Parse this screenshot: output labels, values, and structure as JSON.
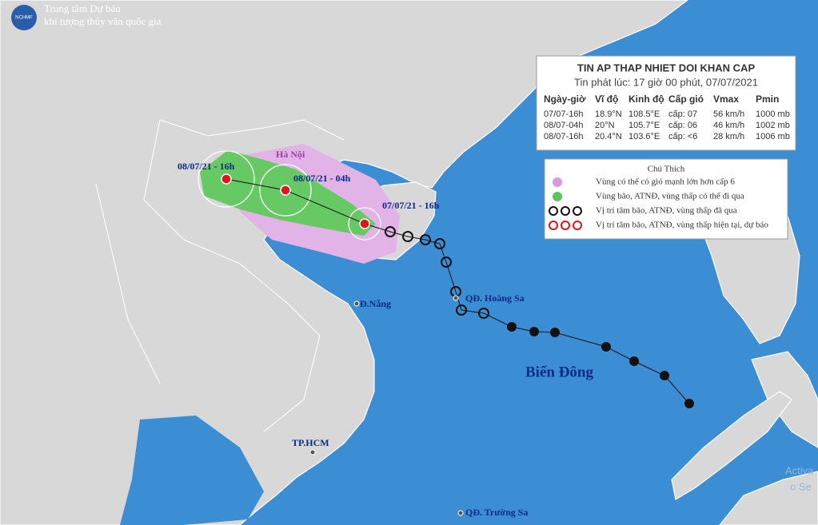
{
  "header": {
    "org_line1": "Trung tâm Dự báo",
    "org_line2": "khí tượng thủy văn quốc gia",
    "logo_text": "NCHMF"
  },
  "bulletin": {
    "title": "TIN AP THAP NHIET DOI KHAN CAP",
    "issued": "Tin phát lúc: 17 giờ 00 phút, 07/07/2021",
    "columns": [
      "Ngày-giờ",
      "Vĩ độ",
      "Kinh độ",
      "Cấp gió",
      "Vmax",
      "Pmin"
    ],
    "rows": [
      [
        "07/07-16h",
        "18.9°N",
        "108.5°E",
        "cấp: 07",
        "56 km/h",
        "1000 mb"
      ],
      [
        "08/07-04h",
        "20°N",
        "105.7°E",
        "cấp: 06",
        "46 km/h",
        "1002 mb"
      ],
      [
        "08/07-16h",
        "20.4°N",
        "103.6°E",
        "cấp: <6",
        "28 km/h",
        "1006 mb"
      ]
    ]
  },
  "legend": {
    "title": "Chú Thích",
    "items": [
      "Vùng có thể có gió mạnh lớn hơn cấp 6",
      "Vùng bão, ATNĐ, vùng thấp có thể đi qua",
      "Vị trí tâm bão, ATNĐ, vùng thấp đã qua",
      "Vị trí tâm bão, ATNĐ, vùng thấp hiện tại, dự báo"
    ]
  },
  "forecast_labels": [
    "08/07/21 - 16h",
    "08/07/21 - 04h",
    "07/07/21 - 16h"
  ],
  "places": [
    "Hà Nội",
    "Đ.Nẵng",
    "QĐ. Hoàng Sa",
    "Biển Đông",
    "TP.HCM",
    "QĐ. Trường Sa"
  ],
  "watermark": [
    "Activa",
    "o Se"
  ]
}
